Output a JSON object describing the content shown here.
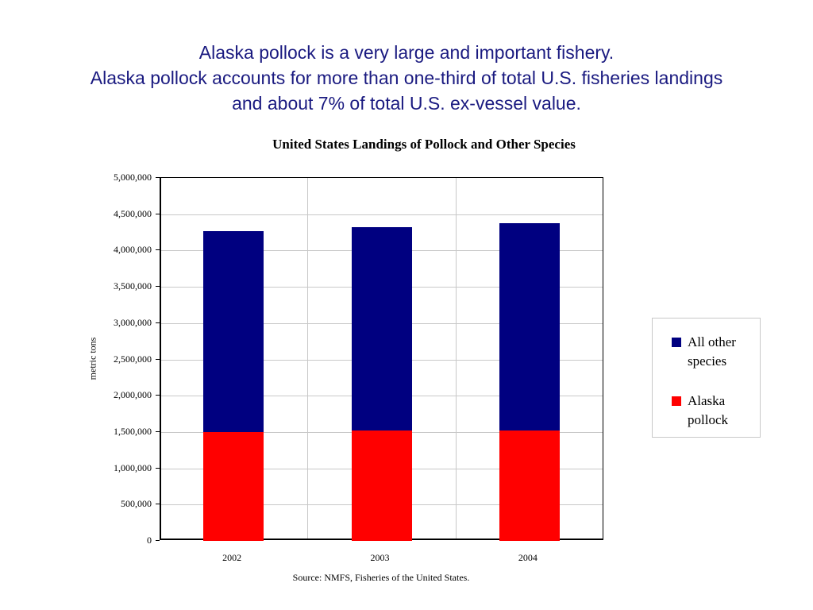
{
  "headline": {
    "line1": "Alaska pollock is a very large and important fishery.",
    "line2": "Alaska pollock accounts for more than one-third of total U.S. fisheries landings",
    "line3": "and about 7% of total U.S. ex-vessel value."
  },
  "colors": {
    "headline": "#1a1a80",
    "all_other_species": "#000080",
    "alaska_pollock": "#ff0000",
    "gridline": "#c8c8c8"
  },
  "chart_data": {
    "type": "bar",
    "stacked": true,
    "title": "United States Landings of Pollock and Other Species",
    "xlabel": "",
    "ylabel": "metric tons",
    "categories": [
      "2002",
      "2003",
      "2004"
    ],
    "series": [
      {
        "name": "Alaska pollock",
        "color": "#ff0000",
        "values": [
          1500000,
          1520000,
          1520000
        ]
      },
      {
        "name": "All other species",
        "color": "#000080",
        "values": [
          2770000,
          2800000,
          2860000
        ]
      }
    ],
    "totals": [
      4270000,
      4320000,
      4380000
    ],
    "ylim": [
      0,
      5000000
    ],
    "yticks": [
      "0",
      "500,000",
      "1,000,000",
      "1,500,000",
      "2,000,000",
      "2,500,000",
      "3,000,000",
      "3,500,000",
      "4,000,000",
      "4,500,000",
      "5,000,000"
    ],
    "grid": true,
    "legend_position": "right",
    "legend": [
      "All other species",
      "Alaska pollock"
    ],
    "annotation": "Source:  NMFS, Fisheries of the United States."
  },
  "legend": {
    "items": [
      {
        "label_line1": "All other",
        "label_line2": "species"
      },
      {
        "label_line1": "Alaska",
        "label_line2": "pollock"
      }
    ]
  }
}
